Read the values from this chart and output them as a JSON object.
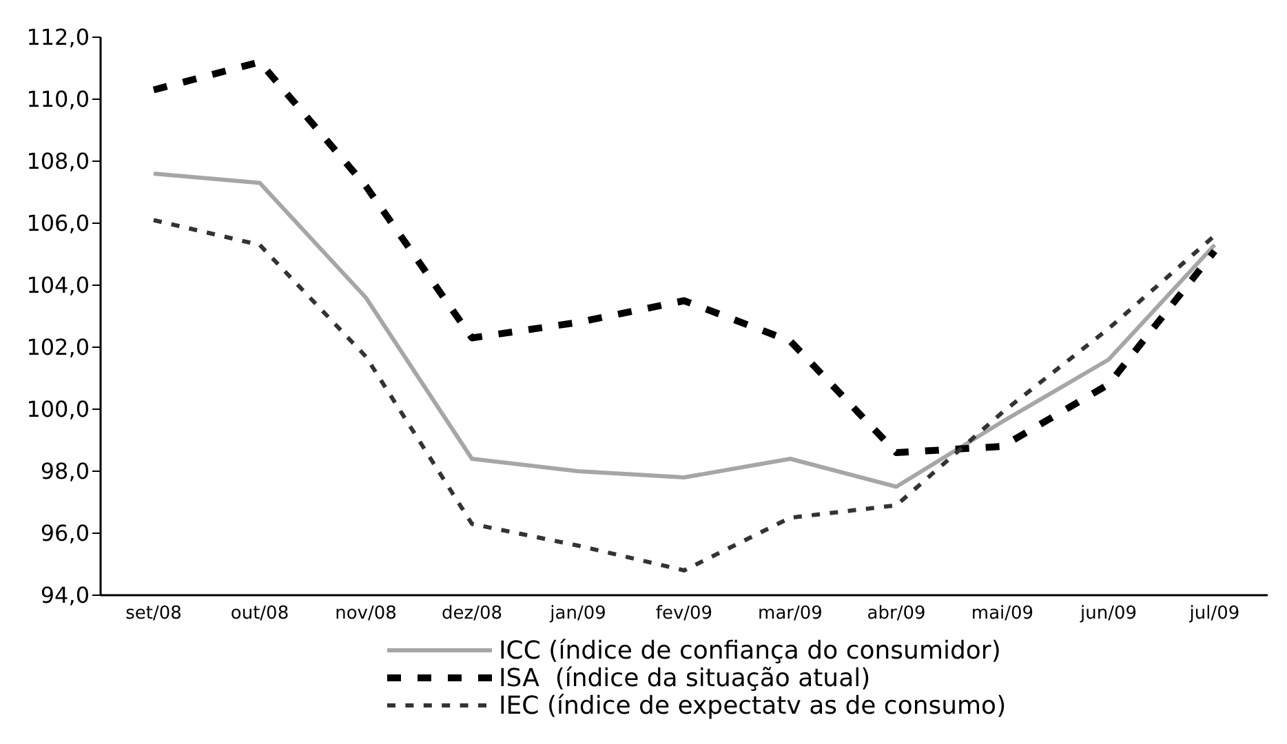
{
  "chart_data": {
    "type": "line",
    "categories": [
      "set/08",
      "out/08",
      "nov/08",
      "dez/08",
      "jan/09",
      "fev/09",
      "mar/09",
      "abr/09",
      "mai/09",
      "jun/09",
      "jul/09"
    ],
    "series": [
      {
        "name": "ICC (índice de confiança do consumidor)",
        "color": "#a6a6a6",
        "line_style": "solid",
        "values": [
          107.6,
          107.3,
          103.6,
          98.4,
          98.0,
          97.8,
          98.4,
          97.5,
          99.6,
          101.6,
          105.3
        ]
      },
      {
        "name": "ISA  (índice da situação atual)",
        "color": "#000000",
        "line_style": "dashed",
        "values": [
          110.3,
          111.2,
          107.2,
          102.3,
          102.8,
          103.5,
          102.2,
          98.6,
          98.8,
          100.8,
          105.1
        ]
      },
      {
        "name": "IEC (índice de expectatv as de consumo)",
        "color": "#333333",
        "line_style": "dashed",
        "values": [
          106.1,
          105.3,
          101.7,
          96.3,
          95.6,
          94.8,
          96.5,
          96.9,
          99.9,
          102.6,
          105.6
        ]
      }
    ],
    "ylim": [
      94,
      112
    ],
    "yticks": [
      {
        "value": 94,
        "label": "94,0"
      },
      {
        "value": 96,
        "label": "96,0"
      },
      {
        "value": 98,
        "label": "98,0"
      },
      {
        "value": 100,
        "label": "100,0"
      },
      {
        "value": 102,
        "label": "102,0"
      },
      {
        "value": 104,
        "label": "104,0"
      },
      {
        "value": 106,
        "label": "106,0"
      },
      {
        "value": 108,
        "label": "108,0"
      },
      {
        "value": 110,
        "label": "110,0"
      },
      {
        "value": 112,
        "label": "112,0"
      }
    ],
    "legend": "bottom"
  }
}
